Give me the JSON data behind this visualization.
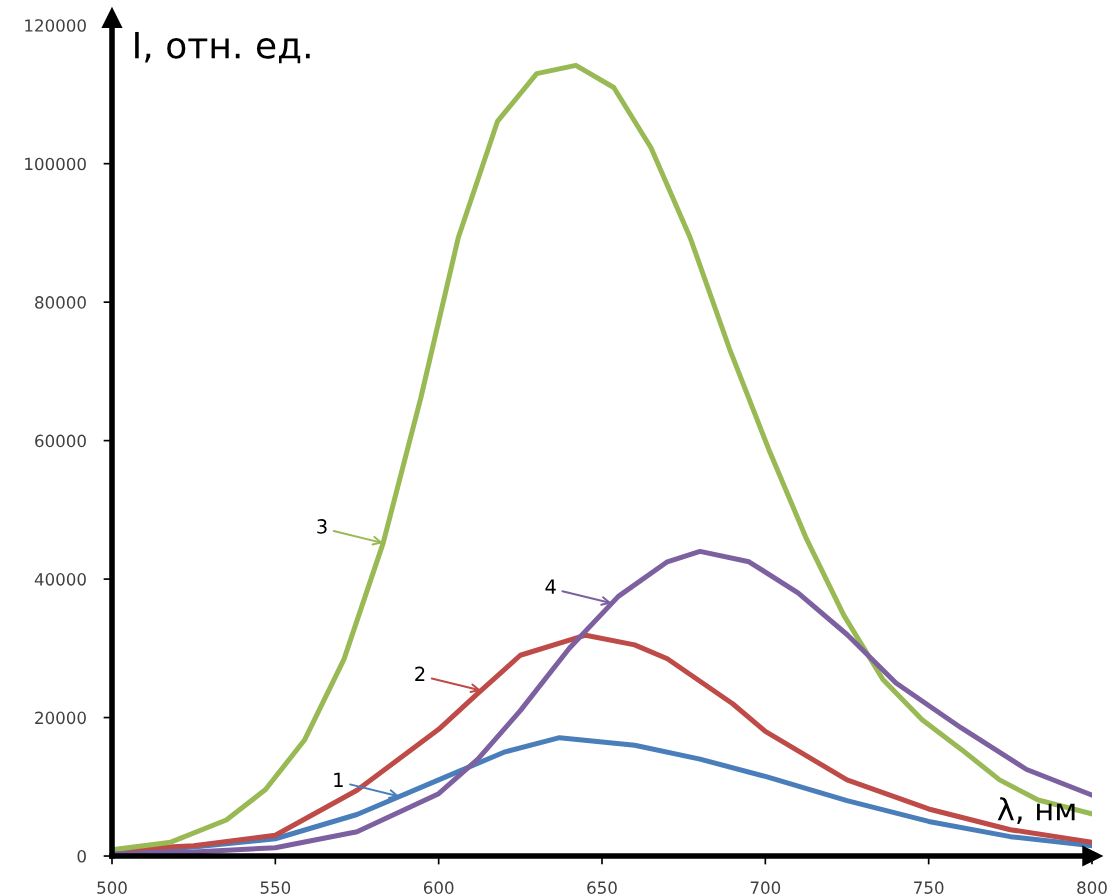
{
  "chart_data": {
    "type": "line",
    "xlabel": "λ, нм",
    "ylabel": "I, отн. ед.",
    "xlim": [
      500,
      800
    ],
    "xticks": [
      500,
      550,
      600,
      650,
      700,
      750,
      800
    ],
    "ylim": [
      0,
      121000
    ],
    "yticks": [
      0,
      20000,
      40000,
      60000,
      80000,
      100000,
      120000
    ],
    "grid": false,
    "legend": false,
    "marker": "none",
    "line_style": "solid",
    "series": [
      {
        "color": "#4a7ebb",
        "x": [
          500,
          525,
          550,
          575,
          600,
          620,
          637,
          660,
          680,
          700,
          725,
          750,
          775,
          800
        ],
        "values": [
          600,
          1300,
          2500,
          6000,
          11000,
          15000,
          17100,
          16000,
          14000,
          11500,
          8000,
          5000,
          2800,
          1500
        ]
      },
      {
        "color": "#be4b48",
        "x": [
          500,
          525,
          550,
          575,
          600,
          612,
          625,
          645,
          660,
          670,
          690,
          700,
          725,
          750,
          775,
          800
        ],
        "values": [
          900,
          1500,
          3000,
          9500,
          18300,
          23500,
          29000,
          31900,
          30500,
          28500,
          22000,
          18000,
          11000,
          6800,
          3800,
          2000
        ]
      },
      {
        "color": "#98b954",
        "x": [
          500,
          518,
          535,
          547,
          559,
          571,
          583,
          594.5,
          606,
          618,
          630,
          642,
          653.6,
          665,
          677,
          689,
          701,
          712.6,
          724,
          736,
          748,
          760,
          771.7,
          783.5,
          800
        ],
        "values": [
          900,
          2000,
          5200,
          9600,
          16800,
          28400,
          45200,
          66100,
          89300,
          106100,
          113000,
          114200,
          111000,
          102300,
          89300,
          73300,
          58800,
          45800,
          34800,
          25500,
          19700,
          15400,
          11000,
          8100,
          6100
        ]
      },
      {
        "color": "#7d60a0",
        "x": [
          500,
          525,
          550,
          575,
          600,
          612,
          625,
          640,
          655,
          670,
          680,
          695,
          710,
          725,
          740,
          760,
          780,
          800
        ],
        "values": [
          300,
          600,
          1200,
          3500,
          9000,
          14000,
          21000,
          30000,
          37500,
          42500,
          44000,
          42500,
          38000,
          32000,
          25000,
          18500,
          12500,
          8800
        ]
      }
    ],
    "annotations": [
      {
        "text": "1",
        "x": 588,
        "y": 8600
      },
      {
        "text": "2",
        "x": 613,
        "y": 23900
      },
      {
        "text": "3",
        "x": 583,
        "y": 45200
      },
      {
        "text": "4",
        "x": 653,
        "y": 36500
      }
    ]
  }
}
